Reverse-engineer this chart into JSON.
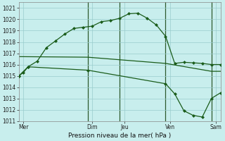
{
  "bg_color": "#c8eeed",
  "grid_color": "#99cccc",
  "line_color": "#1a5c1a",
  "vline_color": "#2d5a2d",
  "title": "Pression niveau de la mer( hPa )",
  "ylim": [
    1011,
    1021.5
  ],
  "yticks": [
    1011,
    1012,
    1013,
    1014,
    1015,
    1016,
    1017,
    1018,
    1019,
    1020,
    1021
  ],
  "xlim": [
    0,
    22
  ],
  "xtick_labels": [
    "Mer",
    "Dim",
    "Jeu",
    "Ven",
    "Sam"
  ],
  "xtick_positions": [
    0.5,
    8,
    11.5,
    16.5,
    21.5
  ],
  "vline_positions": [
    7.5,
    11,
    16,
    21
  ],
  "line1_x": [
    0,
    1,
    2,
    3,
    4,
    5,
    6,
    7,
    8,
    9,
    10,
    11,
    12,
    13,
    14,
    15,
    16,
    17,
    18,
    19,
    20,
    21,
    22
  ],
  "line1_y": [
    1015.0,
    1015.8,
    1016.3,
    1017.5,
    1018.1,
    1018.7,
    1019.2,
    1019.3,
    1019.4,
    1019.8,
    1019.9,
    1020.1,
    1020.5,
    1020.55,
    1020.1,
    1019.5,
    1018.5,
    1016.1,
    1016.2,
    1016.15,
    1016.1,
    1016.0,
    1016.0
  ],
  "line2_x": [
    0,
    7.5,
    16,
    21,
    22
  ],
  "line2_y": [
    1016.7,
    1016.65,
    1016.1,
    1015.4,
    1015.4
  ],
  "line3_x": [
    0,
    0.5,
    1,
    7.5,
    16,
    17,
    18,
    19,
    20,
    21,
    22
  ],
  "line3_y": [
    1015.0,
    1015.3,
    1015.8,
    1015.5,
    1014.3,
    1013.4,
    1011.9,
    1011.5,
    1011.35,
    1013.0,
    1013.5
  ]
}
